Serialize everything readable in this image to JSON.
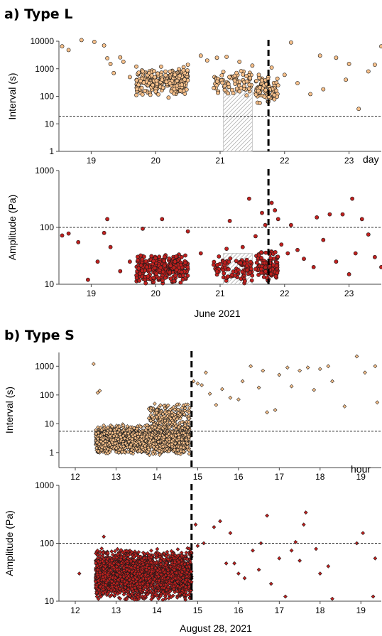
{
  "panels": {
    "a_title": "a) Type L",
    "b_title": "b) Type S",
    "a_xcaption": "June 2021",
    "b_xcaption": "August 28, 2021",
    "a_unit": "day",
    "b_unit": "hour"
  },
  "colors": {
    "interval_fill": "#f7c08a",
    "amplitude_fill": "#c0201e",
    "marker_stroke": "#1a1a1a"
  },
  "chart_data": [
    {
      "id": "a_interval",
      "type": "scatter",
      "ylabel": "Interval (s)",
      "yscale": "log",
      "ylim": [
        1,
        10000
      ],
      "yticks": [
        "1",
        "10",
        "100",
        "1000",
        "10000"
      ],
      "xlim": [
        18.5,
        23.5
      ],
      "xticks": [
        "19",
        "20",
        "21",
        "22",
        "23"
      ],
      "threshold": 19,
      "event_line_x": 21.75,
      "shaded_region": {
        "x": [
          21.05,
          21.5
        ],
        "y": [
          1,
          190
        ]
      },
      "points": [
        [
          18.55,
          6500
        ],
        [
          18.65,
          4800
        ],
        [
          18.85,
          11000
        ],
        [
          19.05,
          9500
        ],
        [
          19.2,
          7000
        ],
        [
          19.25,
          2400
        ],
        [
          19.3,
          1500
        ],
        [
          19.35,
          700
        ],
        [
          19.45,
          2600
        ],
        [
          19.5,
          1800
        ],
        [
          19.6,
          500
        ],
        [
          19.55,
          14000
        ],
        [
          19.7,
          1200
        ],
        [
          19.8,
          800
        ],
        [
          19.9,
          300
        ],
        [
          20.0,
          150
        ],
        [
          20.1,
          400
        ],
        [
          20.2,
          90
        ],
        [
          20.3,
          600
        ],
        [
          20.5,
          1400
        ],
        [
          20.7,
          3000
        ],
        [
          20.8,
          2000
        ],
        [
          20.95,
          2500
        ],
        [
          21.1,
          2700
        ],
        [
          21.3,
          1800
        ],
        [
          21.5,
          1300
        ],
        [
          21.6,
          600
        ],
        [
          21.8,
          1100
        ],
        [
          21.9,
          250
        ],
        [
          22.0,
          600
        ],
        [
          22.2,
          300
        ],
        [
          22.4,
          120
        ],
        [
          22.6,
          180
        ],
        [
          22.8,
          2500
        ],
        [
          23.0,
          1500
        ],
        [
          23.15,
          35
        ],
        [
          23.3,
          800
        ],
        [
          23.4,
          1400
        ],
        [
          23.5,
          6500
        ],
        [
          22.55,
          3000
        ],
        [
          22.95,
          400
        ],
        [
          22.1,
          9000
        ]
      ]
    },
    {
      "id": "a_amplitude",
      "type": "scatter",
      "ylabel": "Amplitude (Pa)",
      "yscale": "log",
      "ylim": [
        10,
        1000
      ],
      "yticks": [
        "10",
        "100",
        "1000"
      ],
      "xlim": [
        18.5,
        23.5
      ],
      "xticks": [
        "19",
        "20",
        "21",
        "22",
        "23"
      ],
      "threshold": 100,
      "event_line_x": 21.75,
      "shaded_region": {
        "x": [
          21.05,
          21.5
        ],
        "y": [
          10,
          35
        ]
      },
      "points": [
        [
          18.55,
          72
        ],
        [
          18.65,
          78
        ],
        [
          18.8,
          55
        ],
        [
          18.95,
          12
        ],
        [
          19.1,
          25
        ],
        [
          19.2,
          80
        ],
        [
          19.25,
          140
        ],
        [
          19.3,
          45
        ],
        [
          19.45,
          17
        ],
        [
          19.6,
          25
        ],
        [
          19.8,
          95
        ],
        [
          20.1,
          140
        ],
        [
          20.3,
          25
        ],
        [
          20.5,
          85
        ],
        [
          20.7,
          35
        ],
        [
          20.9,
          22
        ],
        [
          21.1,
          42
        ],
        [
          21.15,
          130
        ],
        [
          21.35,
          45
        ],
        [
          21.45,
          320
        ],
        [
          21.55,
          70
        ],
        [
          21.65,
          180
        ],
        [
          21.7,
          110
        ],
        [
          21.8,
          270
        ],
        [
          21.85,
          200
        ],
        [
          21.9,
          140
        ],
        [
          21.95,
          50
        ],
        [
          22.05,
          35
        ],
        [
          22.1,
          110
        ],
        [
          22.3,
          28
        ],
        [
          22.45,
          20
        ],
        [
          22.6,
          60
        ],
        [
          22.8,
          25
        ],
        [
          22.9,
          170
        ],
        [
          23.0,
          15
        ],
        [
          23.1,
          35
        ],
        [
          23.2,
          140
        ],
        [
          23.3,
          75
        ],
        [
          23.4,
          30
        ],
        [
          23.5,
          20
        ],
        [
          22.5,
          150
        ],
        [
          23.05,
          320
        ],
        [
          22.7,
          170
        ],
        [
          22.2,
          40
        ]
      ]
    },
    {
      "id": "b_interval",
      "type": "scatter",
      "ylabel": "Interval (s)",
      "yscale": "log",
      "ylim": [
        0.3,
        3000
      ],
      "yticks": [
        "1",
        "10",
        "100",
        "1000"
      ],
      "xlim": [
        11.6,
        19.5
      ],
      "xticks": [
        "12",
        "13",
        "14",
        "15",
        "16",
        "17",
        "18",
        "19"
      ],
      "threshold": 5.5,
      "event_line_x": 14.85,
      "points": [
        [
          12.45,
          1200
        ],
        [
          12.6,
          140
        ],
        [
          12.55,
          120
        ],
        [
          14.9,
          300
        ],
        [
          15.0,
          250
        ],
        [
          15.1,
          220
        ],
        [
          15.3,
          110
        ],
        [
          15.45,
          45
        ],
        [
          15.6,
          160
        ],
        [
          15.8,
          80
        ],
        [
          16.0,
          70
        ],
        [
          16.1,
          300
        ],
        [
          16.3,
          1000
        ],
        [
          16.5,
          180
        ],
        [
          16.6,
          700
        ],
        [
          16.9,
          30
        ],
        [
          17.0,
          500
        ],
        [
          17.2,
          900
        ],
        [
          17.3,
          200
        ],
        [
          17.5,
          700
        ],
        [
          17.7,
          900
        ],
        [
          17.85,
          150
        ],
        [
          18.0,
          800
        ],
        [
          18.2,
          1000
        ],
        [
          18.3,
          300
        ],
        [
          18.9,
          2200
        ],
        [
          19.1,
          600
        ],
        [
          19.35,
          1000
        ],
        [
          19.4,
          55
        ],
        [
          18.6,
          40
        ],
        [
          15.2,
          600
        ],
        [
          16.7,
          25
        ]
      ]
    },
    {
      "id": "b_amplitude",
      "type": "scatter",
      "ylabel": "Amplitude (Pa)",
      "yscale": "log",
      "ylim": [
        10,
        1000
      ],
      "yticks": [
        "10",
        "100",
        "1000"
      ],
      "xlim": [
        11.6,
        19.5
      ],
      "xticks": [
        "12",
        "13",
        "14",
        "15",
        "16",
        "17",
        "18",
        "19"
      ],
      "threshold": 100,
      "event_line_x": 14.85,
      "points": [
        [
          12.1,
          30
        ],
        [
          12.55,
          35
        ],
        [
          12.7,
          130
        ],
        [
          14.95,
          210
        ],
        [
          15.0,
          90
        ],
        [
          15.15,
          100
        ],
        [
          15.4,
          190
        ],
        [
          15.55,
          240
        ],
        [
          15.7,
          45
        ],
        [
          15.8,
          150
        ],
        [
          16.0,
          30
        ],
        [
          16.15,
          25
        ],
        [
          16.35,
          75
        ],
        [
          16.5,
          35
        ],
        [
          16.55,
          100
        ],
        [
          16.7,
          300
        ],
        [
          16.8,
          20
        ],
        [
          17.0,
          55
        ],
        [
          17.15,
          12
        ],
        [
          17.3,
          75
        ],
        [
          17.4,
          105
        ],
        [
          17.5,
          50
        ],
        [
          17.6,
          210
        ],
        [
          17.65,
          340
        ],
        [
          17.9,
          80
        ],
        [
          18.0,
          30
        ],
        [
          18.2,
          40
        ],
        [
          18.3,
          11
        ],
        [
          18.9,
          100
        ],
        [
          19.05,
          150
        ],
        [
          19.3,
          12
        ],
        [
          19.35,
          55
        ],
        [
          15.9,
          45
        ]
      ]
    }
  ],
  "clusters": [
    {
      "panel": "a_interval",
      "n": 280,
      "x": [
        19.7,
        20.5
      ],
      "logy": [
        2.0,
        3.1
      ]
    },
    {
      "panel": "a_interval",
      "n": 80,
      "x": [
        20.9,
        21.5
      ],
      "logy": [
        2.0,
        3.0
      ]
    },
    {
      "panel": "a_interval",
      "n": 90,
      "x": [
        21.55,
        21.9
      ],
      "logy": [
        1.7,
        2.8
      ]
    },
    {
      "panel": "a_amplitude",
      "n": 300,
      "x": [
        19.7,
        20.5
      ],
      "logy": [
        1.0,
        1.55
      ]
    },
    {
      "panel": "a_amplitude",
      "n": 90,
      "x": [
        20.9,
        21.5
      ],
      "logy": [
        1.0,
        1.5
      ]
    },
    {
      "panel": "a_amplitude",
      "n": 100,
      "x": [
        21.55,
        21.9
      ],
      "logy": [
        1.0,
        1.6
      ]
    },
    {
      "panel": "b_interval",
      "n": 1500,
      "x": [
        12.5,
        14.8
      ],
      "logy": [
        -0.1,
        1.0
      ]
    },
    {
      "panel": "b_interval",
      "n": 220,
      "x": [
        13.8,
        14.8
      ],
      "logy": [
        0.7,
        1.75
      ]
    },
    {
      "panel": "b_amplitude",
      "n": 2500,
      "x": [
        12.5,
        14.85
      ],
      "logy": [
        1.0,
        1.92
      ]
    }
  ]
}
